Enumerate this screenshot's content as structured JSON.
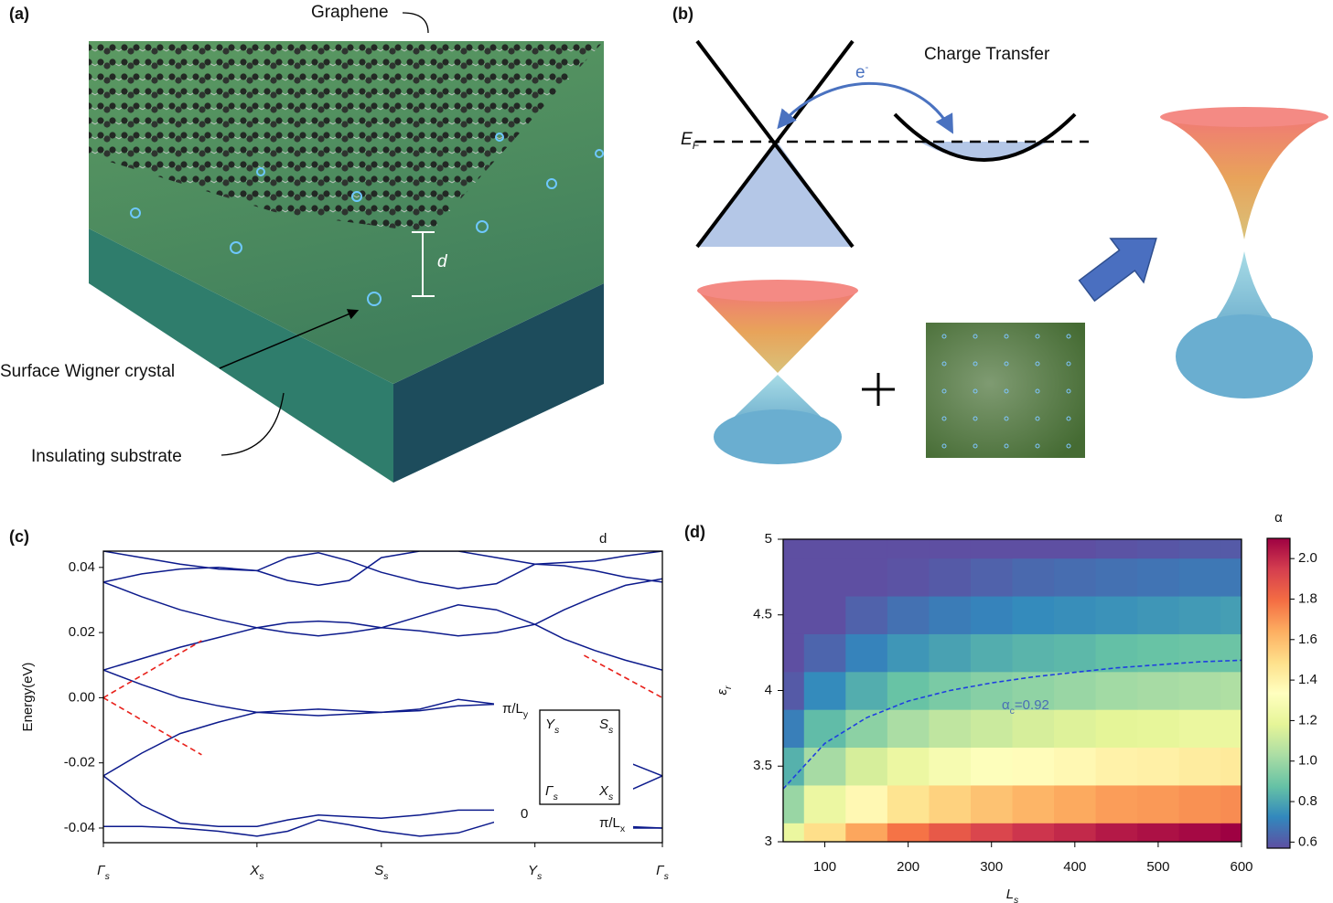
{
  "figure": {
    "panel_labels": [
      "(a)",
      "(b)",
      "(c)",
      "(d)"
    ],
    "panel_a": {
      "graphene": "Graphene",
      "d": "d",
      "wigner": "Surface Wigner crystal",
      "substrate": "Insulating substrate"
    },
    "panel_b": {
      "charge_transfer": "Charge Transfer",
      "electron": "e",
      "electron_sup": "-",
      "fermi": "E",
      "fermi_sub": "F"
    }
  },
  "chart_data": [
    {
      "type": "line",
      "ylabel": "Energy(eV)",
      "xlim": [
        0,
        3.64
      ],
      "ylim": [
        -0.0445,
        0.045
      ],
      "xticks": [
        {
          "value": 0,
          "label": "Γ",
          "sub": "s"
        },
        {
          "value": 1,
          "label": "X",
          "sub": "s"
        },
        {
          "value": 1.81,
          "label": "S",
          "sub": "s"
        },
        {
          "value": 2.81,
          "label": "Y",
          "sub": "s"
        },
        {
          "value": 3.64,
          "label": "Γ",
          "sub": "s"
        }
      ],
      "yticks": [
        -0.04,
        -0.02,
        {
          "value": 0,
          "label": "0.00"
        },
        0.02,
        0.04
      ],
      "annotations": [
        {
          "text": "d"
        },
        {
          "text": "π/L",
          "sub": "y"
        },
        {
          "text": "0"
        },
        {
          "text": "π/L",
          "sub": "x"
        }
      ],
      "inset_labels": [
        {
          "text": "Y",
          "sub": "s"
        },
        {
          "text": "S",
          "sub": "s"
        },
        {
          "text": "Γ",
          "sub": "s"
        },
        {
          "text": "X",
          "sub": "s"
        }
      ],
      "x": [
        0,
        0.25,
        0.5,
        0.75,
        1,
        1.2,
        1.4,
        1.6,
        1.81,
        2.06,
        2.31,
        2.56,
        2.81,
        3.0,
        3.2,
        3.4,
        3.64
      ],
      "series": [
        {
          "color": "#0c1a8c",
          "values": [
            0.0085,
            0.012,
            0.0155,
            0.0185,
            0.0215,
            0.02,
            0.019,
            0.02,
            0.0215,
            0.0205,
            0.019,
            0.02,
            0.0225,
            0.018,
            0.0145,
            0.0115,
            0.0085
          ]
        },
        {
          "color": "#0c1a8c",
          "values": [
            0.0355,
            0.031,
            0.027,
            0.024,
            0.0215,
            0.023,
            0.0235,
            0.023,
            0.0215,
            0.025,
            0.0285,
            0.027,
            0.0225,
            0.027,
            0.031,
            0.0345,
            0.0365
          ]
        },
        {
          "color": "#0c1a8c",
          "values": [
            0.0355,
            0.038,
            0.0395,
            0.04,
            0.039,
            0.043,
            0.0445,
            0.042,
            0.0385,
            0.0355,
            0.0335,
            0.035,
            0.041,
            0.0405,
            0.039,
            0.037,
            0.0355
          ]
        },
        {
          "color": "#0c1a8c",
          "values": [
            0.045,
            0.043,
            0.041,
            0.0395,
            0.039,
            0.036,
            0.0345,
            0.036,
            0.043,
            0.045,
            0.045,
            0.043,
            0.041,
            0.0415,
            0.042,
            0.0435,
            0.045
          ]
        },
        {
          "color": "#0c1a8c",
          "values": [
            0.0085,
            0.004,
            0.0,
            -0.0025,
            -0.0045,
            -0.004,
            -0.0035,
            -0.004,
            -0.0045,
            -0.004,
            -0.0025,
            -0.002,
            -0.003,
            null,
            null,
            -0.0195,
            -0.024
          ]
        },
        {
          "color": "#0c1a8c",
          "values": [
            -0.024,
            -0.017,
            -0.011,
            -0.0075,
            -0.0045,
            -0.005,
            -0.0055,
            -0.005,
            -0.0045,
            -0.0035,
            -0.0005,
            -0.002,
            -0.003,
            null,
            null,
            -0.029,
            -0.024
          ]
        },
        {
          "color": "#0c1a8c",
          "values": [
            -0.024,
            -0.033,
            -0.0385,
            -0.0395,
            -0.0395,
            -0.0375,
            -0.036,
            -0.0365,
            -0.037,
            -0.036,
            -0.0345,
            -0.0345,
            null,
            null,
            null,
            -0.04,
            -0.04
          ]
        },
        {
          "color": "#0c1a8c",
          "values": [
            -0.0395,
            -0.0395,
            -0.04,
            -0.041,
            -0.0425,
            -0.041,
            -0.0375,
            -0.039,
            -0.041,
            -0.0425,
            -0.0415,
            -0.038,
            null,
            null,
            null,
            -0.0395,
            -0.04
          ]
        },
        {
          "color": "#e8201a",
          "linestyle": "dashed",
          "x": [
            0,
            0.64
          ],
          "values": [
            0,
            0.0175
          ]
        },
        {
          "color": "#e8201a",
          "linestyle": "dashed",
          "x": [
            0,
            0.64
          ],
          "values": [
            0,
            -0.0175
          ]
        },
        {
          "color": "#e8201a",
          "linestyle": "dashed",
          "x": [
            3.13,
            3.64
          ],
          "values": [
            0.013,
            0
          ]
        }
      ]
    },
    {
      "type": "heatmap",
      "xlabel": {
        "text": "L",
        "sub": "s"
      },
      "ylabel": {
        "text": "ε",
        "sub": "r"
      },
      "colorbar_label": "α",
      "xlim": [
        50,
        600
      ],
      "ylim": [
        3,
        5
      ],
      "xticks": [
        100,
        200,
        300,
        400,
        500,
        600
      ],
      "yticks": [
        3,
        3.5,
        4,
        4.5,
        5
      ],
      "zlim": [
        0.57,
        2.1
      ],
      "zticks": [
        0.6,
        0.8,
        {
          "value": 1,
          "label": "1.0"
        },
        1.2,
        1.4,
        1.6,
        1.8,
        {
          "value": 2,
          "label": "2.0"
        }
      ],
      "colormap": [
        "#5e4fa2",
        "#3288bd",
        "#66c2a5",
        "#abdda4",
        "#e6f598",
        "#ffffbf",
        "#fee08b",
        "#fdae61",
        "#f46d43",
        "#d53e4f",
        "#9e0142"
      ],
      "x": [
        50,
        100,
        150,
        200,
        250,
        300,
        350,
        400,
        450,
        500,
        550,
        600
      ],
      "y": [
        3,
        3.25,
        3.5,
        3.75,
        4,
        4.25,
        4.5,
        4.75,
        5
      ],
      "z": [
        [
          1.21,
          1.49,
          1.66,
          1.78,
          1.86,
          1.92,
          1.97,
          2.0,
          2.04,
          2.06,
          2.08,
          2.1
        ],
        [
          0.99,
          1.22,
          1.37,
          1.47,
          1.53,
          1.58,
          1.62,
          1.65,
          1.68,
          1.69,
          1.71,
          1.72
        ],
        [
          0.83,
          1.02,
          1.14,
          1.22,
          1.28,
          1.32,
          1.35,
          1.37,
          1.4,
          1.41,
          1.43,
          1.44
        ],
        [
          0.7,
          0.86,
          0.96,
          1.03,
          1.08,
          1.11,
          1.14,
          1.16,
          1.18,
          1.19,
          1.21,
          1.21
        ],
        [
          0.6,
          0.73,
          0.82,
          0.88,
          0.92,
          0.95,
          0.97,
          0.99,
          1.01,
          1.02,
          1.03,
          1.04
        ],
        [
          0.51,
          0.63,
          0.71,
          0.76,
          0.79,
          0.82,
          0.84,
          0.85,
          0.87,
          0.88,
          0.89,
          0.89
        ],
        [
          0.45,
          0.55,
          0.62,
          0.66,
          0.69,
          0.71,
          0.73,
          0.74,
          0.75,
          0.76,
          0.77,
          0.78
        ],
        [
          0.39,
          0.48,
          0.54,
          0.58,
          0.6,
          0.62,
          0.64,
          0.65,
          0.66,
          0.67,
          0.68,
          0.68
        ],
        [
          0.34,
          0.43,
          0.48,
          0.51,
          0.53,
          0.55,
          0.56,
          0.57,
          0.58,
          0.59,
          0.6,
          0.6
        ]
      ],
      "annotation": {
        "text": "α",
        "sub": "c",
        "text2": "=0.92"
      },
      "series": [
        {
          "color": "#1f3fe0",
          "linestyle": "dashed",
          "x": [
            50,
            100,
            150,
            200,
            250,
            300,
            350,
            400,
            450,
            500,
            550,
            600
          ],
          "values": [
            3.35,
            3.65,
            3.82,
            3.93,
            4.0,
            4.05,
            4.09,
            4.12,
            4.15,
            4.17,
            4.19,
            4.2
          ]
        }
      ]
    }
  ]
}
